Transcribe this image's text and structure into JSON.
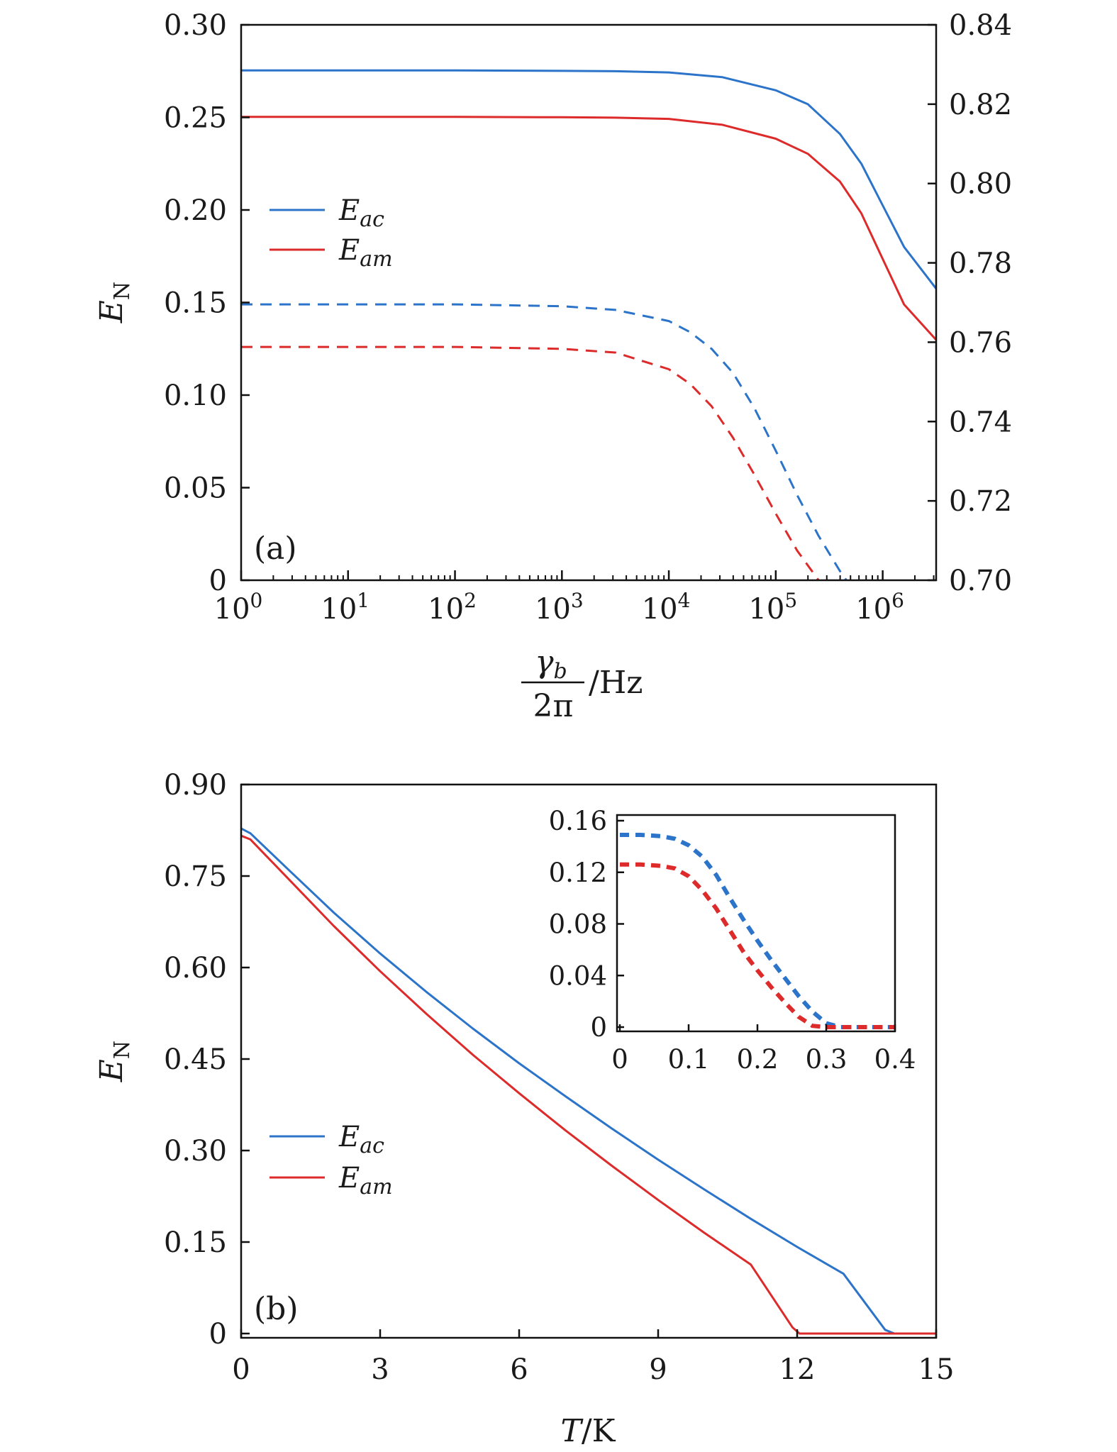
{
  "chart_data": [
    {
      "id": "a",
      "type": "line",
      "panel_label": "(a)",
      "xscale": "log10",
      "xlim_log10": [
        0,
        6.5
      ],
      "xticks": [
        {
          "base": "10",
          "exp": "0"
        },
        {
          "base": "10",
          "exp": "1"
        },
        {
          "base": "10",
          "exp": "2"
        },
        {
          "base": "10",
          "exp": "3"
        },
        {
          "base": "10",
          "exp": "4"
        },
        {
          "base": "10",
          "exp": "5"
        },
        {
          "base": "10",
          "exp": "6"
        }
      ],
      "xlabel": {
        "numerator": "γ",
        "numerator_sub": "b",
        "denominator": "2π",
        "unit": "/Hz"
      },
      "ylabel": {
        "main": "E",
        "sub": "N"
      },
      "ylim": [
        0,
        0.3
      ],
      "yticks": [
        "0",
        "0.05",
        "0.10",
        "0.15",
        "0.20",
        "0.25",
        "0.30"
      ],
      "ylim_right": [
        0.7,
        0.84
      ],
      "yticks_right": [
        "0.70",
        "0.72",
        "0.74",
        "0.76",
        "0.78",
        "0.80",
        "0.82",
        "0.84"
      ],
      "legend": {
        "position": "left-middle",
        "entries": [
          {
            "main": "E",
            "sub": "ac",
            "color": "#2c74c9"
          },
          {
            "main": "E",
            "sub": "am",
            "color": "#dd2a2a"
          }
        ]
      },
      "series": [
        {
          "axis": "right",
          "style": "solid",
          "color": "#2c74c9",
          "x_log10": [
            0,
            1,
            2,
            3,
            3.5,
            4,
            4.5,
            5,
            5.3,
            5.6,
            5.8,
            6,
            6.2,
            6.5
          ],
          "y": [
            0.8285,
            0.8285,
            0.8285,
            0.8284,
            0.8283,
            0.828,
            0.8268,
            0.8235,
            0.82,
            0.8125,
            0.805,
            0.7945,
            0.784,
            0.7735
          ]
        },
        {
          "axis": "right",
          "style": "solid",
          "color": "#dd2a2a",
          "x_log10": [
            0,
            1,
            2,
            3,
            3.5,
            4,
            4.5,
            5,
            5.3,
            5.6,
            5.8,
            6,
            6.2,
            6.5
          ],
          "y": [
            0.8168,
            0.8168,
            0.8168,
            0.8167,
            0.8166,
            0.8163,
            0.8148,
            0.8113,
            0.8075,
            0.8005,
            0.7925,
            0.781,
            0.7695,
            0.7606
          ]
        },
        {
          "axis": "left",
          "style": "dashed",
          "color": "#2c74c9",
          "x_log10": [
            0,
            1,
            2,
            3,
            3.5,
            4,
            4.2,
            4.4,
            4.6,
            4.8,
            5,
            5.2,
            5.4,
            5.6,
            5.66
          ],
          "y": [
            0.149,
            0.149,
            0.149,
            0.148,
            0.146,
            0.14,
            0.134,
            0.125,
            0.112,
            0.093,
            0.07,
            0.046,
            0.024,
            0.005,
            0.0
          ]
        },
        {
          "axis": "left",
          "style": "dashed",
          "color": "#dd2a2a",
          "x_log10": [
            0,
            1,
            2,
            3,
            3.5,
            4,
            4.2,
            4.4,
            4.6,
            4.8,
            5,
            5.2,
            5.3,
            5.4
          ],
          "y": [
            0.126,
            0.126,
            0.126,
            0.125,
            0.123,
            0.114,
            0.106,
            0.094,
            0.077,
            0.057,
            0.036,
            0.016,
            0.008,
            0.0
          ]
        }
      ]
    },
    {
      "id": "b",
      "type": "line",
      "panel_label": "(b)",
      "xlim": [
        0,
        15
      ],
      "xticks": [
        "0",
        "3",
        "6",
        "9",
        "12",
        "15"
      ],
      "xlabel": {
        "main": "T",
        "unit": "/K"
      },
      "ylabel": {
        "main": "E",
        "sub": "N"
      },
      "ylim": [
        0,
        0.9
      ],
      "yticks": [
        "0",
        "0.15",
        "0.30",
        "0.45",
        "0.60",
        "0.75",
        "0.90"
      ],
      "legend": {
        "position": "bottom-left",
        "entries": [
          {
            "main": "E",
            "sub": "ac",
            "color": "#2c74c9"
          },
          {
            "main": "E",
            "sub": "am",
            "color": "#dd2a2a"
          }
        ]
      },
      "series": [
        {
          "style": "solid",
          "color": "#2c74c9",
          "x": [
            0,
            0.2,
            1,
            2,
            3,
            4,
            5,
            6,
            7,
            8,
            9,
            10,
            11,
            12,
            13,
            13.9,
            14.1,
            15
          ],
          "y": [
            0.828,
            0.82,
            0.762,
            0.69,
            0.623,
            0.56,
            0.5,
            0.443,
            0.389,
            0.336,
            0.285,
            0.236,
            0.188,
            0.142,
            0.098,
            0.006,
            0.0,
            0.0
          ]
        },
        {
          "style": "solid",
          "color": "#dd2a2a",
          "x": [
            0,
            0.2,
            1,
            2,
            3,
            4,
            5,
            6,
            7,
            8,
            9,
            10,
            11,
            11.9,
            12.05,
            15
          ],
          "y": [
            0.816,
            0.81,
            0.747,
            0.668,
            0.594,
            0.524,
            0.457,
            0.394,
            0.333,
            0.275,
            0.219,
            0.165,
            0.113,
            0.01,
            0.0,
            0.0
          ]
        }
      ],
      "inset": {
        "xlim": [
          0,
          0.4
        ],
        "xticks": [
          "0",
          "0.1",
          "0.2",
          "0.3",
          "0.4"
        ],
        "ylim": [
          0,
          0.16
        ],
        "yticks": [
          "0",
          "0.04",
          "0.08",
          "0.12",
          "0.16"
        ],
        "series": [
          {
            "style": "dashed",
            "color": "#2c74c9",
            "x": [
              0,
              0.03,
              0.06,
              0.08,
              0.1,
              0.12,
              0.14,
              0.16,
              0.18,
              0.2,
              0.22,
              0.24,
              0.26,
              0.28,
              0.3,
              0.32,
              0.35,
              0.4
            ],
            "y": [
              0.149,
              0.149,
              0.148,
              0.146,
              0.141,
              0.132,
              0.118,
              0.1,
              0.083,
              0.067,
              0.052,
              0.038,
              0.024,
              0.012,
              0.003,
              0.0,
              0.0,
              0.0
            ]
          },
          {
            "style": "dashed",
            "color": "#dd2a2a",
            "x": [
              0,
              0.03,
              0.06,
              0.08,
              0.1,
              0.12,
              0.14,
              0.16,
              0.18,
              0.2,
              0.22,
              0.24,
              0.26,
              0.28,
              0.3,
              0.35,
              0.4
            ],
            "y": [
              0.126,
              0.126,
              0.125,
              0.123,
              0.117,
              0.106,
              0.092,
              0.075,
              0.058,
              0.044,
              0.031,
              0.019,
              0.008,
              0.001,
              0.0,
              0.0,
              0.0
            ]
          }
        ]
      }
    }
  ]
}
